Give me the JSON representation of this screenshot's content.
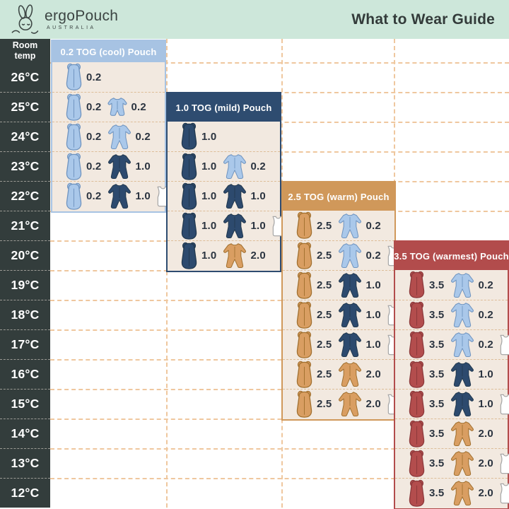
{
  "header": {
    "brand": "ergoPouch",
    "brand_sub": "AUSTRALIA",
    "title": "What to Wear Guide"
  },
  "temp_column": {
    "header": "Room\ntemp",
    "temps": [
      "26°C",
      "25°C",
      "24°C",
      "23°C",
      "22°C",
      "21°C",
      "20°C",
      "19°C",
      "18°C",
      "17°C",
      "16°C",
      "15°C",
      "14°C",
      "13°C",
      "12°C"
    ]
  },
  "icons": {
    "pouch": "sleeping-pouch-icon",
    "romper": "long-sleeve-romper-icon",
    "romper_short": "short-sleeve-romper-icon",
    "singlet": "singlet-icon"
  },
  "colors": {
    "mint_header_bg": "#cde7da",
    "ink": "#333b3a",
    "temp_column_bg": "#333d3c",
    "panel_body_bg": "#f2e9e0",
    "grid_dash": "#efc79e",
    "row_dash": "#ddbd98",
    "value_ink": "#2b3440",
    "garments": {
      "blue": {
        "fill": "#aac8ea",
        "stroke": "#6f94c0"
      },
      "navy": {
        "fill": "#2d4a6e",
        "stroke": "#22394f"
      },
      "tan": {
        "fill": "#d99e62",
        "stroke": "#a1702f"
      },
      "red": {
        "fill": "#b34d4d",
        "stroke": "#8c393b"
      },
      "white": {
        "fill": "#ffffff",
        "stroke": "#a7a7a7"
      }
    }
  },
  "panels": [
    {
      "title": "0.2 TOG (cool) Pouch",
      "accent": "#a7c3e3",
      "start_temp": "26°C",
      "rows": [
        [
          {
            "icon": "pouch",
            "color": "blue",
            "value": "0.2"
          }
        ],
        [
          {
            "icon": "pouch",
            "color": "blue",
            "value": "0.2"
          },
          {
            "icon": "romper_short",
            "color": "blue",
            "value": "0.2"
          }
        ],
        [
          {
            "icon": "pouch",
            "color": "blue",
            "value": "0.2"
          },
          {
            "icon": "romper",
            "color": "blue",
            "value": "0.2"
          }
        ],
        [
          {
            "icon": "pouch",
            "color": "blue",
            "value": "0.2"
          },
          {
            "icon": "romper",
            "color": "navy",
            "value": "1.0"
          }
        ],
        [
          {
            "icon": "pouch",
            "color": "blue",
            "value": "0.2"
          },
          {
            "icon": "romper",
            "color": "navy",
            "value": "1.0"
          },
          {
            "icon": "singlet",
            "color": "white"
          }
        ]
      ]
    },
    {
      "title": "1.0 TOG (mild) Pouch",
      "accent": "#2e4c70",
      "start_temp": "24°C",
      "rows": [
        [
          {
            "icon": "pouch",
            "color": "navy",
            "value": "1.0"
          }
        ],
        [
          {
            "icon": "pouch",
            "color": "navy",
            "value": "1.0"
          },
          {
            "icon": "romper",
            "color": "blue",
            "value": "0.2"
          }
        ],
        [
          {
            "icon": "pouch",
            "color": "navy",
            "value": "1.0"
          },
          {
            "icon": "romper",
            "color": "navy",
            "value": "1.0"
          }
        ],
        [
          {
            "icon": "pouch",
            "color": "navy",
            "value": "1.0"
          },
          {
            "icon": "romper",
            "color": "navy",
            "value": "1.0"
          },
          {
            "icon": "singlet",
            "color": "white"
          }
        ],
        [
          {
            "icon": "pouch",
            "color": "navy",
            "value": "1.0"
          },
          {
            "icon": "romper",
            "color": "tan",
            "value": "2.0"
          }
        ]
      ]
    },
    {
      "title": "2.5 TOG (warm) Pouch",
      "accent": "#d0985a",
      "start_temp": "21°C",
      "rows": [
        [
          {
            "icon": "pouch",
            "color": "tan",
            "value": "2.5"
          },
          {
            "icon": "romper",
            "color": "blue",
            "value": "0.2"
          }
        ],
        [
          {
            "icon": "pouch",
            "color": "tan",
            "value": "2.5"
          },
          {
            "icon": "romper",
            "color": "blue",
            "value": "0.2"
          },
          {
            "icon": "singlet",
            "color": "white"
          }
        ],
        [
          {
            "icon": "pouch",
            "color": "tan",
            "value": "2.5"
          },
          {
            "icon": "romper",
            "color": "navy",
            "value": "1.0"
          }
        ],
        [
          {
            "icon": "pouch",
            "color": "tan",
            "value": "2.5"
          },
          {
            "icon": "romper",
            "color": "navy",
            "value": "1.0"
          },
          {
            "icon": "singlet",
            "color": "white"
          }
        ],
        [
          {
            "icon": "pouch",
            "color": "tan",
            "value": "2.5"
          },
          {
            "icon": "romper",
            "color": "navy",
            "value": "1.0"
          },
          {
            "icon": "singlet",
            "color": "white"
          }
        ],
        [
          {
            "icon": "pouch",
            "color": "tan",
            "value": "2.5"
          },
          {
            "icon": "romper",
            "color": "tan",
            "value": "2.0"
          }
        ],
        [
          {
            "icon": "pouch",
            "color": "tan",
            "value": "2.5"
          },
          {
            "icon": "romper",
            "color": "tan",
            "value": "2.0"
          },
          {
            "icon": "singlet",
            "color": "white"
          }
        ]
      ]
    },
    {
      "title": "3.5 TOG (warmest) Pouch",
      "accent": "#b24c4c",
      "start_temp": "19°C",
      "rows": [
        [
          {
            "icon": "pouch",
            "color": "red",
            "value": "3.5"
          },
          {
            "icon": "romper",
            "color": "blue",
            "value": "0.2"
          }
        ],
        [
          {
            "icon": "pouch",
            "color": "red",
            "value": "3.5"
          },
          {
            "icon": "romper",
            "color": "blue",
            "value": "0.2"
          }
        ],
        [
          {
            "icon": "pouch",
            "color": "red",
            "value": "3.5"
          },
          {
            "icon": "romper",
            "color": "blue",
            "value": "0.2"
          },
          {
            "icon": "singlet",
            "color": "white"
          }
        ],
        [
          {
            "icon": "pouch",
            "color": "red",
            "value": "3.5"
          },
          {
            "icon": "romper",
            "color": "navy",
            "value": "1.0"
          }
        ],
        [
          {
            "icon": "pouch",
            "color": "red",
            "value": "3.5"
          },
          {
            "icon": "romper",
            "color": "navy",
            "value": "1.0"
          },
          {
            "icon": "singlet",
            "color": "white"
          }
        ],
        [
          {
            "icon": "pouch",
            "color": "red",
            "value": "3.5"
          },
          {
            "icon": "romper",
            "color": "tan",
            "value": "2.0"
          }
        ],
        [
          {
            "icon": "pouch",
            "color": "red",
            "value": "3.5"
          },
          {
            "icon": "romper",
            "color": "tan",
            "value": "2.0"
          },
          {
            "icon": "singlet",
            "color": "white"
          }
        ],
        [
          {
            "icon": "pouch",
            "color": "red",
            "value": "3.5"
          },
          {
            "icon": "romper",
            "color": "tan",
            "value": "2.0"
          },
          {
            "icon": "singlet",
            "color": "white"
          }
        ]
      ]
    }
  ],
  "chart_data": {
    "type": "table",
    "title": "What to Wear Guide",
    "row_header": "Room temp",
    "categories": [
      "26°C",
      "25°C",
      "24°C",
      "23°C",
      "22°C",
      "21°C",
      "20°C",
      "19°C",
      "18°C",
      "17°C",
      "16°C",
      "15°C",
      "14°C",
      "13°C",
      "12°C"
    ],
    "series": [
      {
        "name": "0.2 TOG (cool) Pouch",
        "by_temp": {
          "26°C": [
            "pouch 0.2"
          ],
          "25°C": [
            "pouch 0.2",
            "short-sleeve romper 0.2"
          ],
          "24°C": [
            "pouch 0.2",
            "romper 0.2"
          ],
          "23°C": [
            "pouch 0.2",
            "romper 1.0"
          ],
          "22°C": [
            "pouch 0.2",
            "romper 1.0",
            "singlet"
          ]
        }
      },
      {
        "name": "1.0 TOG (mild) Pouch",
        "by_temp": {
          "24°C": [
            "pouch 1.0"
          ],
          "23°C": [
            "pouch 1.0",
            "romper 0.2"
          ],
          "22°C": [
            "pouch 1.0",
            "romper 1.0"
          ],
          "21°C": [
            "pouch 1.0",
            "romper 1.0",
            "singlet"
          ],
          "20°C": [
            "pouch 1.0",
            "romper 2.0"
          ]
        }
      },
      {
        "name": "2.5 TOG (warm) Pouch",
        "by_temp": {
          "21°C": [
            "pouch 2.5",
            "romper 0.2"
          ],
          "20°C": [
            "pouch 2.5",
            "romper 0.2",
            "singlet"
          ],
          "19°C": [
            "pouch 2.5",
            "romper 1.0"
          ],
          "18°C": [
            "pouch 2.5",
            "romper 1.0",
            "singlet"
          ],
          "17°C": [
            "pouch 2.5",
            "romper 1.0",
            "singlet"
          ],
          "16°C": [
            "pouch 2.5",
            "romper 2.0"
          ],
          "15°C": [
            "pouch 2.5",
            "romper 2.0",
            "singlet"
          ]
        }
      },
      {
        "name": "3.5 TOG (warmest) Pouch",
        "by_temp": {
          "19°C": [
            "pouch 3.5",
            "romper 0.2"
          ],
          "18°C": [
            "pouch 3.5",
            "romper 0.2"
          ],
          "17°C": [
            "pouch 3.5",
            "romper 0.2",
            "singlet"
          ],
          "16°C": [
            "pouch 3.5",
            "romper 1.0"
          ],
          "15°C": [
            "pouch 3.5",
            "romper 1.0",
            "singlet"
          ],
          "14°C": [
            "pouch 3.5",
            "romper 2.0"
          ],
          "13°C": [
            "pouch 3.5",
            "romper 2.0",
            "singlet"
          ],
          "12°C": [
            "pouch 3.5",
            "romper 2.0",
            "singlet"
          ]
        }
      }
    ]
  }
}
